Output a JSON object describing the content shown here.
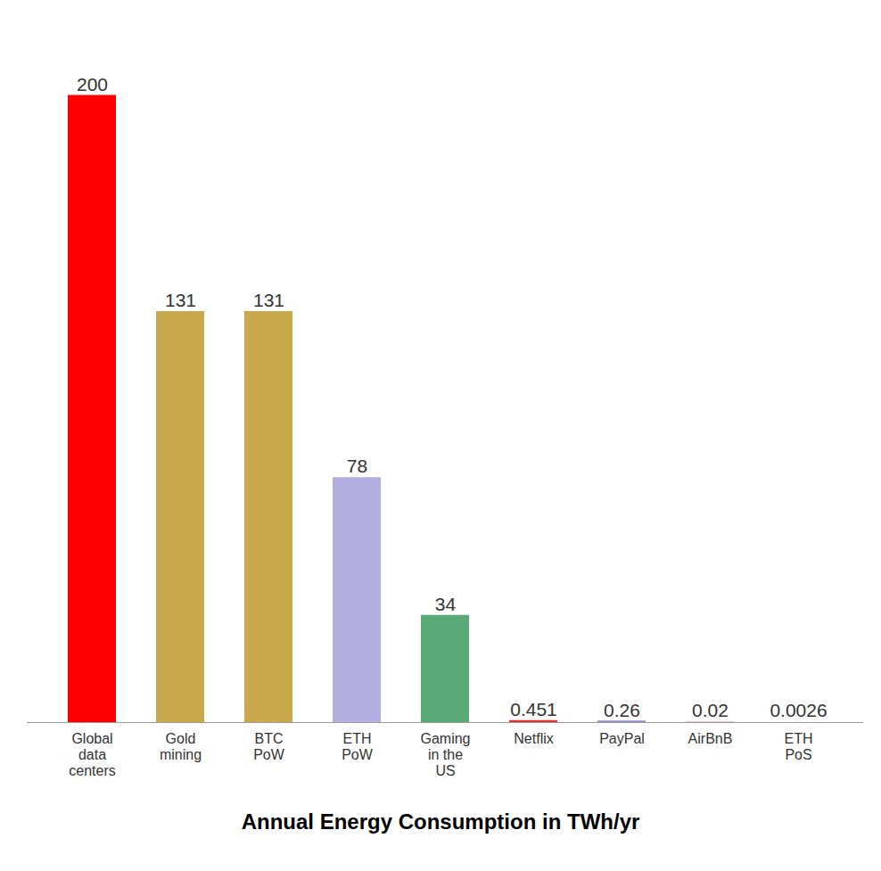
{
  "chart_data": {
    "type": "bar",
    "title": "Annual Energy Consumption in TWh/yr",
    "categories": [
      "Global\ndata\ncenters",
      "Gold\nmining",
      "BTC\nPoW",
      "ETH\nPoW",
      "Gaming\nin the\nUS",
      "Netflix",
      "PayPal",
      "AirBnB",
      "ETH\nPoS"
    ],
    "values": [
      200,
      131,
      131,
      78,
      34,
      0.451,
      0.26,
      0.02,
      0.0026
    ],
    "colors": [
      "#ff0000",
      "#c8a84b",
      "#c8a84b",
      "#b3aee0",
      "#5aaa78",
      "#e03030",
      "#9090cc",
      "#e8b0c0",
      null
    ],
    "ylim": [
      0,
      222
    ],
    "grid": false,
    "data_labels": true,
    "tick_labels": "x"
  }
}
